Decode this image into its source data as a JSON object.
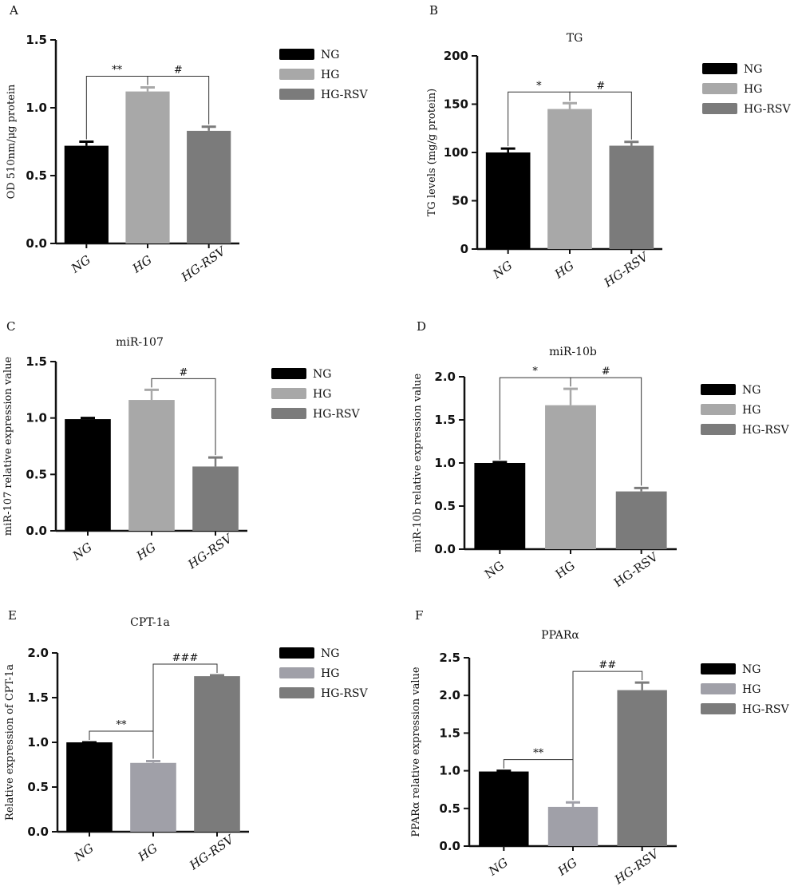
{
  "chart_data": [
    {
      "panel": "A",
      "type": "bar",
      "title": "",
      "ylabel": "OD 510nm/μg protein",
      "xlabel": "",
      "categories": [
        "NG",
        "HG",
        "HG-RSV"
      ],
      "values": [
        0.72,
        1.12,
        0.83
      ],
      "errors": [
        0.03,
        0.03,
        0.03
      ],
      "ylim": [
        0,
        1.5
      ],
      "yticks": [
        "0.0",
        "0.5",
        "1.0",
        "1.5"
      ],
      "legend": [
        "NG",
        "HG",
        "HG-RSV"
      ],
      "legend_position": "right",
      "colors": [
        "#000000",
        "#a8a8a8",
        "#7b7b7b"
      ],
      "italic_categories": true,
      "annotations": [
        {
          "from": 0,
          "to": 1,
          "label": "**"
        },
        {
          "from": 1,
          "to": 2,
          "label": "#"
        }
      ]
    },
    {
      "panel": "B",
      "type": "bar",
      "title": "TG",
      "ylabel": "TG levels (mg/g protein)",
      "xlabel": "",
      "categories": [
        "NG",
        "HG",
        "HG-RSV"
      ],
      "values": [
        100,
        145,
        107
      ],
      "errors": [
        4,
        6,
        4
      ],
      "ylim": [
        0,
        200
      ],
      "yticks": [
        "0",
        "50",
        "100",
        "150",
        "200"
      ],
      "legend": [
        "NG",
        "HG",
        "HG-RSV"
      ],
      "legend_position": "right",
      "colors": [
        "#000000",
        "#a8a8a8",
        "#7b7b7b"
      ],
      "italic_categories": true,
      "annotations": [
        {
          "from": 0,
          "to": 1,
          "label": "*"
        },
        {
          "from": 1,
          "to": 2,
          "label": "#"
        }
      ]
    },
    {
      "panel": "C",
      "type": "bar",
      "title": "miR-107",
      "ylabel": "miR-107 relative expression value",
      "xlabel": "",
      "categories": [
        "NG",
        "HG",
        "HG-RSV"
      ],
      "values": [
        0.99,
        1.16,
        0.57
      ],
      "errors": [
        0.01,
        0.09,
        0.08
      ],
      "ylim": [
        0,
        1.5
      ],
      "yticks": [
        "0.0",
        "0.5",
        "1.0",
        "1.5"
      ],
      "legend": [
        "NG",
        "HG",
        "HG-RSV"
      ],
      "legend_position": "right",
      "colors": [
        "#000000",
        "#a8a8a8",
        "#7b7b7b"
      ],
      "italic_categories": true,
      "annotations": [
        {
          "from": 1,
          "to": 2,
          "label": "#"
        }
      ]
    },
    {
      "panel": "D",
      "type": "bar",
      "title": "miR-10b",
      "ylabel": "miR-10b relative expression value",
      "xlabel": "",
      "categories": [
        "NG",
        "HG",
        "HG-RSV"
      ],
      "values": [
        1.0,
        1.67,
        0.67
      ],
      "errors": [
        0.01,
        0.19,
        0.04
      ],
      "ylim": [
        0,
        2.0
      ],
      "yticks": [
        "0.0",
        "0.5",
        "1.0",
        "1.5",
        "2.0"
      ],
      "legend": [
        "NG",
        "HG",
        "HG-RSV"
      ],
      "legend_position": "right",
      "colors": [
        "#000000",
        "#a8a8a8",
        "#7b7b7b"
      ],
      "italic_categories": false,
      "annotations": [
        {
          "from": 0,
          "to": 1,
          "label": "*"
        },
        {
          "from": 1,
          "to": 2,
          "label": "#"
        }
      ]
    },
    {
      "panel": "E",
      "type": "bar",
      "title": "CPT-1a",
      "ylabel": "Relative expression of CPT-1a",
      "xlabel": "",
      "categories": [
        "NG",
        "HG",
        "HG-RSV"
      ],
      "values": [
        1.0,
        0.77,
        1.74
      ],
      "errors": [
        0.0,
        0.02,
        0.01
      ],
      "ylim": [
        0,
        2.0
      ],
      "yticks": [
        "0.0",
        "0.5",
        "1.0",
        "1.5",
        "2.0"
      ],
      "legend": [
        "NG",
        "HG",
        "HG-RSV"
      ],
      "legend_position": "right",
      "colors": [
        "#000000",
        "#a0a0a8",
        "#7b7b7b"
      ],
      "italic_categories": true,
      "annotations": [
        {
          "from": 0,
          "to": 1,
          "label": "**"
        },
        {
          "from": 1,
          "to": 2,
          "label": "###"
        }
      ]
    },
    {
      "panel": "F",
      "type": "bar",
      "title": "PPARα",
      "ylabel": "PPARα relative expression value",
      "xlabel": "",
      "categories": [
        "NG",
        "HG",
        "HG-RSV"
      ],
      "values": [
        0.99,
        0.52,
        2.07
      ],
      "errors": [
        0.01,
        0.06,
        0.1
      ],
      "ylim": [
        0,
        2.5
      ],
      "yticks": [
        "0.0",
        "0.5",
        "1.0",
        "1.5",
        "2.0",
        "2.5"
      ],
      "legend": [
        "NG",
        "HG",
        "HG-RSV"
      ],
      "legend_position": "right",
      "colors": [
        "#000000",
        "#a0a0a8",
        "#7b7b7b"
      ],
      "italic_categories": true,
      "annotations": [
        {
          "from": 0,
          "to": 1,
          "label": "**"
        },
        {
          "from": 1,
          "to": 2,
          "label": "##"
        }
      ]
    }
  ]
}
